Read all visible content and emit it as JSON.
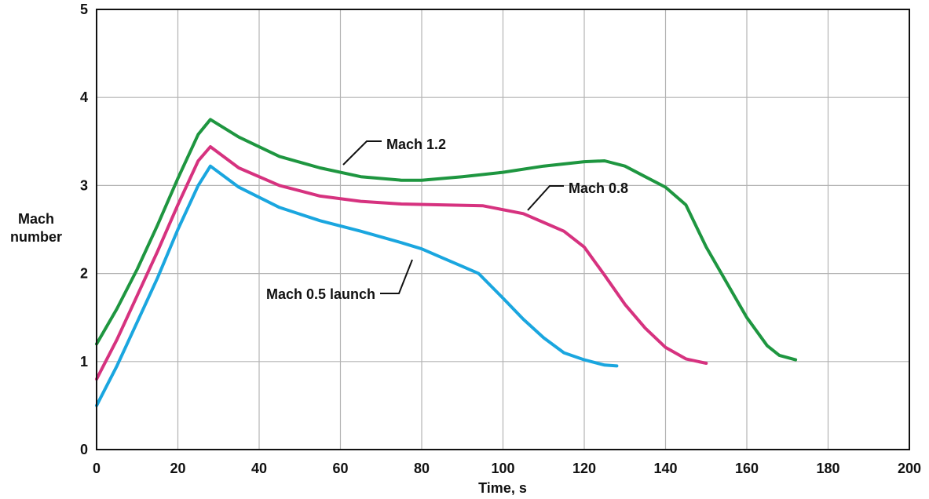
{
  "chart_data": {
    "type": "line",
    "xlabel": "Time, s",
    "ylabel_lines": [
      "Mach",
      "number"
    ],
    "xlim": [
      0,
      200
    ],
    "ylim": [
      0,
      5
    ],
    "xticks": [
      0,
      20,
      40,
      60,
      80,
      100,
      120,
      140,
      160,
      180,
      200
    ],
    "yticks": [
      0,
      1,
      2,
      3,
      4,
      5
    ],
    "grid": true,
    "series": [
      {
        "name": "Mach 0.5 launch",
        "color": "#1aa6df",
        "x": [
          0,
          5,
          10,
          15,
          20,
          25,
          28,
          35,
          45,
          55,
          65,
          75,
          80,
          85,
          90,
          94,
          100,
          105,
          110,
          115,
          120,
          125,
          128
        ],
        "y": [
          0.5,
          0.95,
          1.45,
          1.95,
          2.5,
          3.0,
          3.22,
          2.98,
          2.75,
          2.6,
          2.48,
          2.35,
          2.28,
          2.18,
          2.08,
          2.0,
          1.72,
          1.48,
          1.27,
          1.1,
          1.02,
          0.96,
          0.95
        ]
      },
      {
        "name": "Mach 0.8",
        "color": "#d6327f",
        "x": [
          0,
          5,
          10,
          15,
          20,
          25,
          28,
          35,
          45,
          55,
          65,
          75,
          85,
          95,
          105,
          110,
          115,
          120,
          125,
          130,
          135,
          140,
          145,
          150
        ],
        "y": [
          0.8,
          1.25,
          1.75,
          2.25,
          2.78,
          3.28,
          3.44,
          3.2,
          3.0,
          2.88,
          2.82,
          2.79,
          2.78,
          2.77,
          2.68,
          2.58,
          2.48,
          2.3,
          1.98,
          1.65,
          1.38,
          1.16,
          1.03,
          0.98
        ]
      },
      {
        "name": "Mach 1.2",
        "color": "#1e9640",
        "x": [
          0,
          5,
          10,
          15,
          20,
          25,
          28,
          35,
          45,
          55,
          65,
          75,
          80,
          90,
          100,
          110,
          120,
          125,
          130,
          135,
          140,
          145,
          150,
          155,
          160,
          165,
          168,
          172
        ],
        "y": [
          1.2,
          1.6,
          2.05,
          2.55,
          3.08,
          3.58,
          3.75,
          3.55,
          3.33,
          3.2,
          3.1,
          3.06,
          3.06,
          3.1,
          3.15,
          3.22,
          3.27,
          3.28,
          3.22,
          3.1,
          2.98,
          2.78,
          2.3,
          1.9,
          1.5,
          1.18,
          1.07,
          1.02
        ]
      }
    ],
    "annotations": [
      {
        "text": "Mach 1.2",
        "series": "Mach 1.2"
      },
      {
        "text": "Mach 0.8",
        "series": "Mach 0.8"
      },
      {
        "text": "Mach 0.5 launch",
        "series": "Mach 0.5 launch"
      }
    ]
  }
}
